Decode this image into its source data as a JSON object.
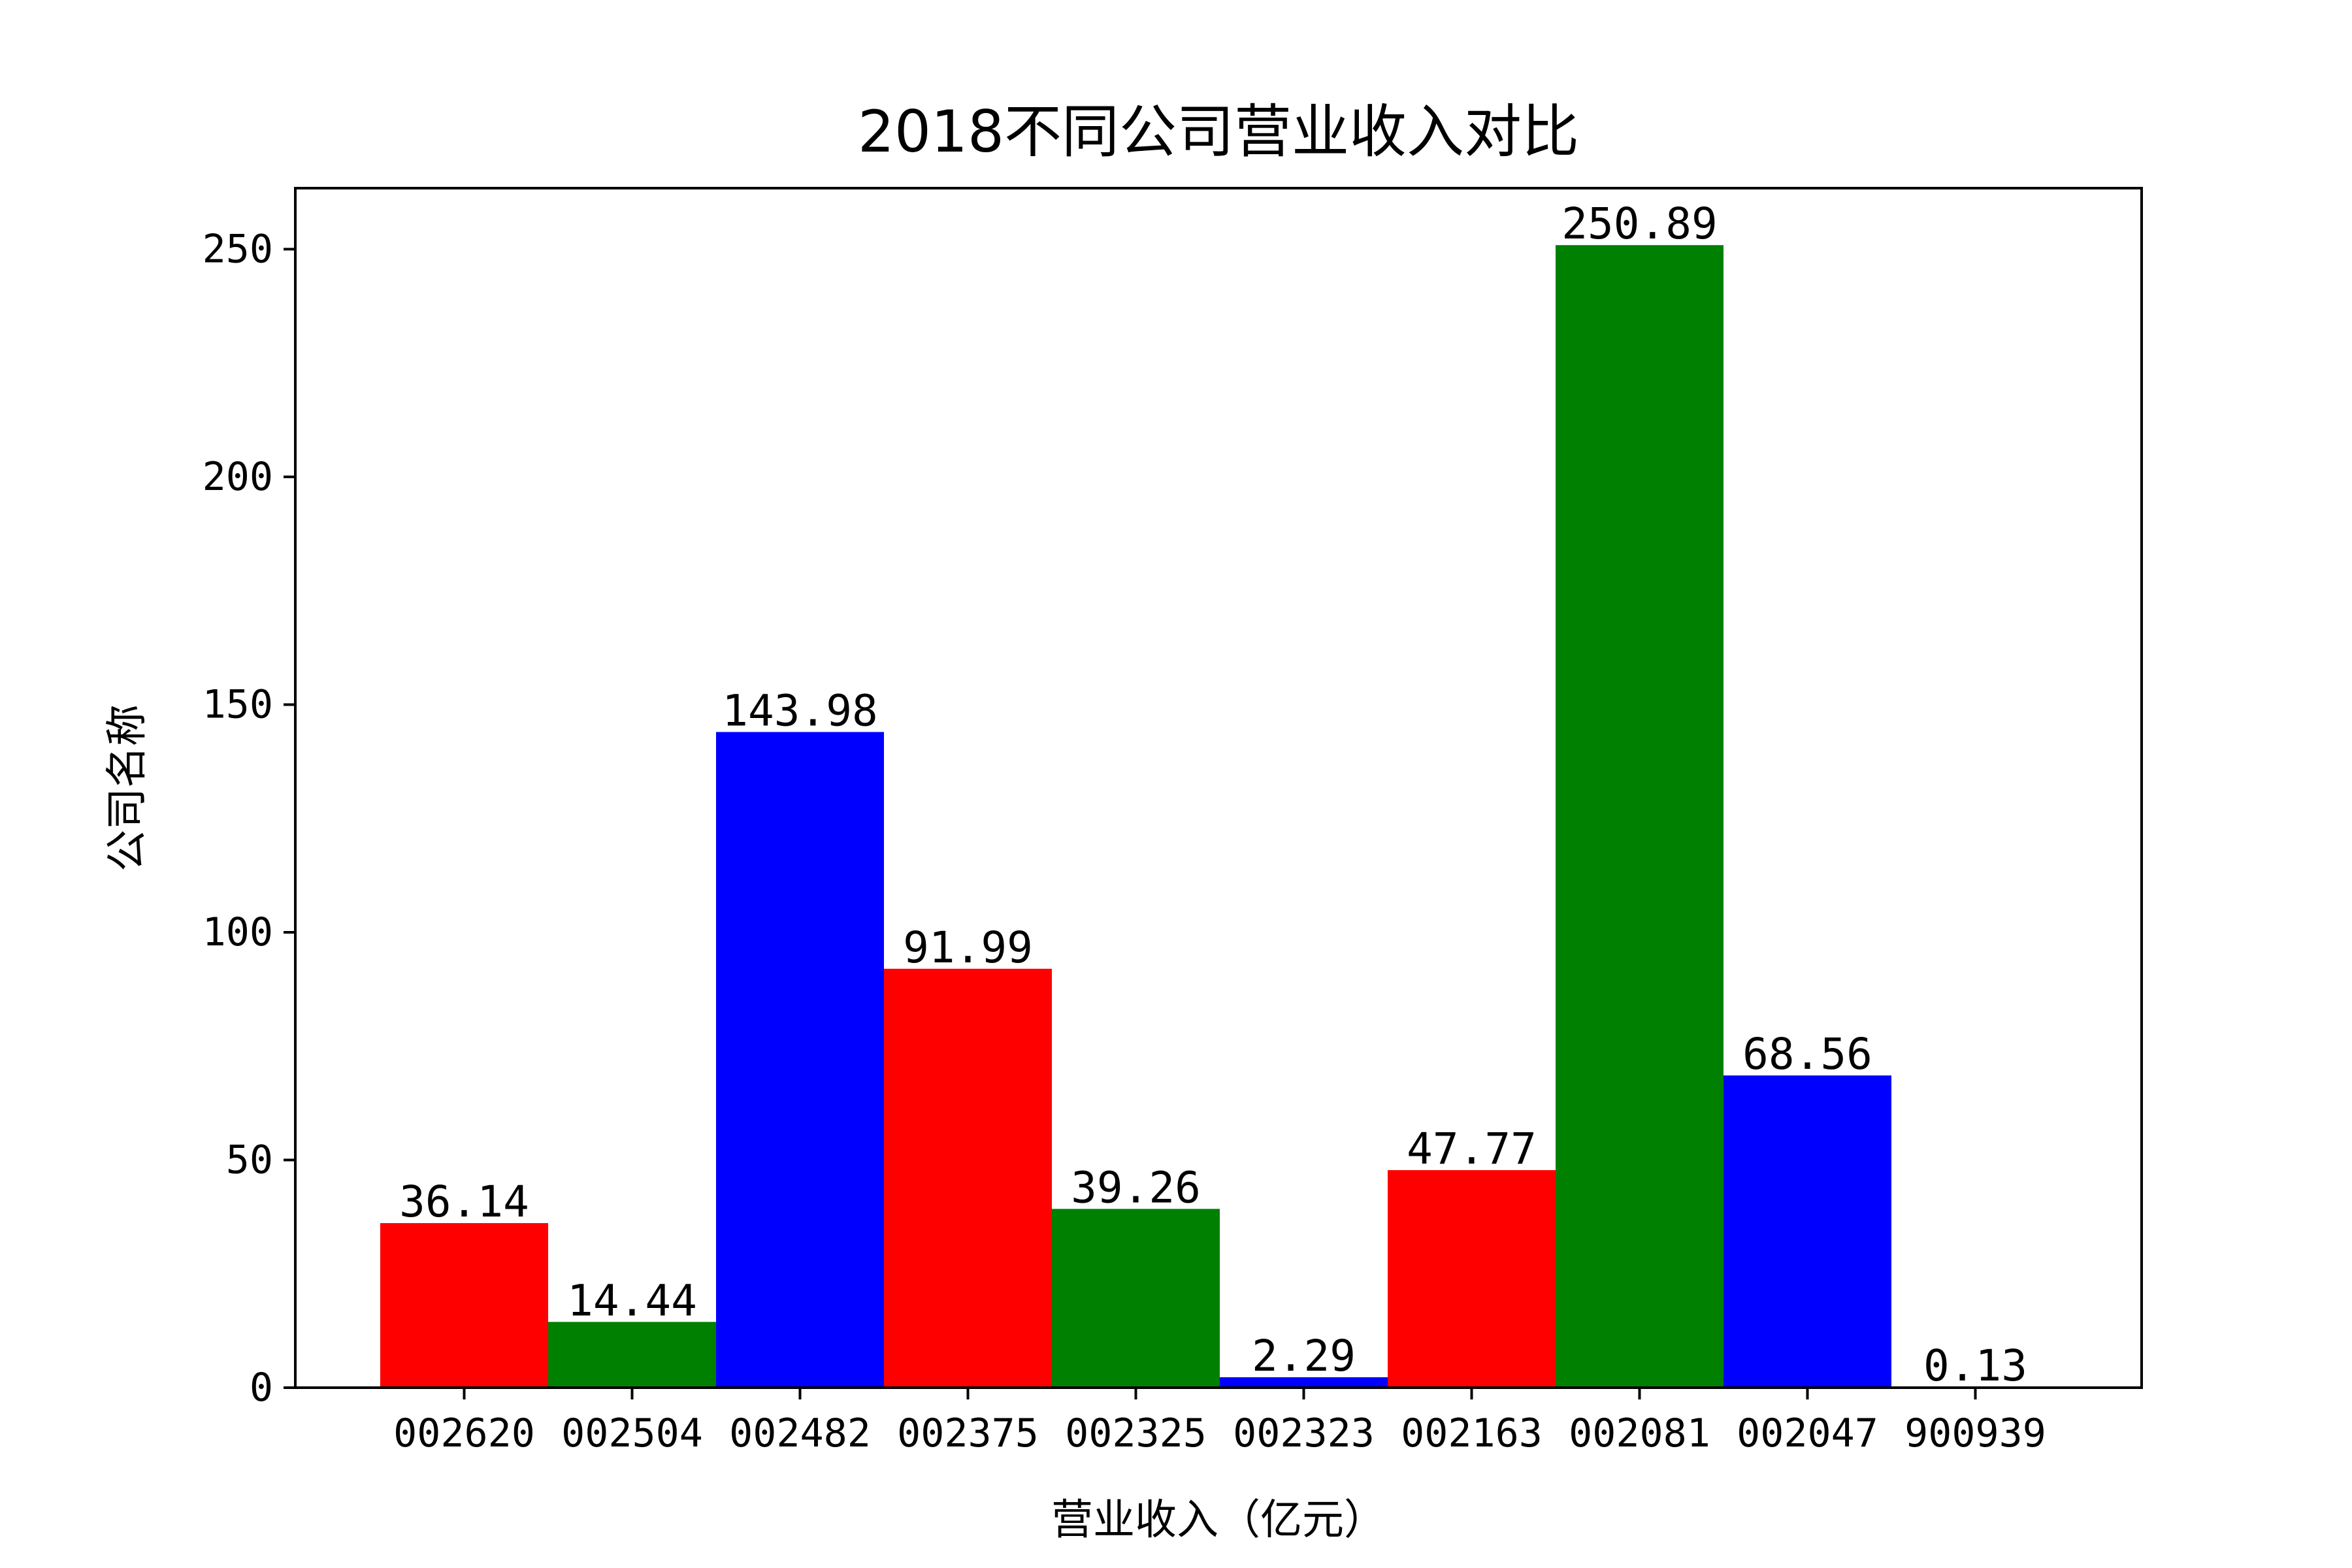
{
  "chart_data": {
    "type": "bar",
    "title": "2018不同公司营业收入对比",
    "xlabel": "营业收入（亿元）",
    "ylabel": "公司名称",
    "categories": [
      "002620",
      "002504",
      "002482",
      "002375",
      "002325",
      "002323",
      "002163",
      "002081",
      "002047",
      "900939"
    ],
    "values": [
      36.14,
      14.44,
      143.98,
      91.99,
      39.26,
      2.29,
      47.77,
      250.89,
      68.56,
      0.13
    ],
    "value_labels": [
      "36.14",
      "14.44",
      "143.98",
      "91.99",
      "39.26",
      "2.29",
      "47.77",
      "250.89",
      "68.56",
      "0.13"
    ],
    "bar_colors": [
      "#ff0000",
      "#008000",
      "#0000ff",
      "#ff0000",
      "#008000",
      "#0000ff",
      "#ff0000",
      "#008000",
      "#0000ff",
      "#ff0000"
    ],
    "ylim": [
      0,
      263.4
    ],
    "yticks": [
      0,
      50,
      100,
      150,
      200,
      250
    ],
    "grid": false,
    "legend": "none"
  }
}
